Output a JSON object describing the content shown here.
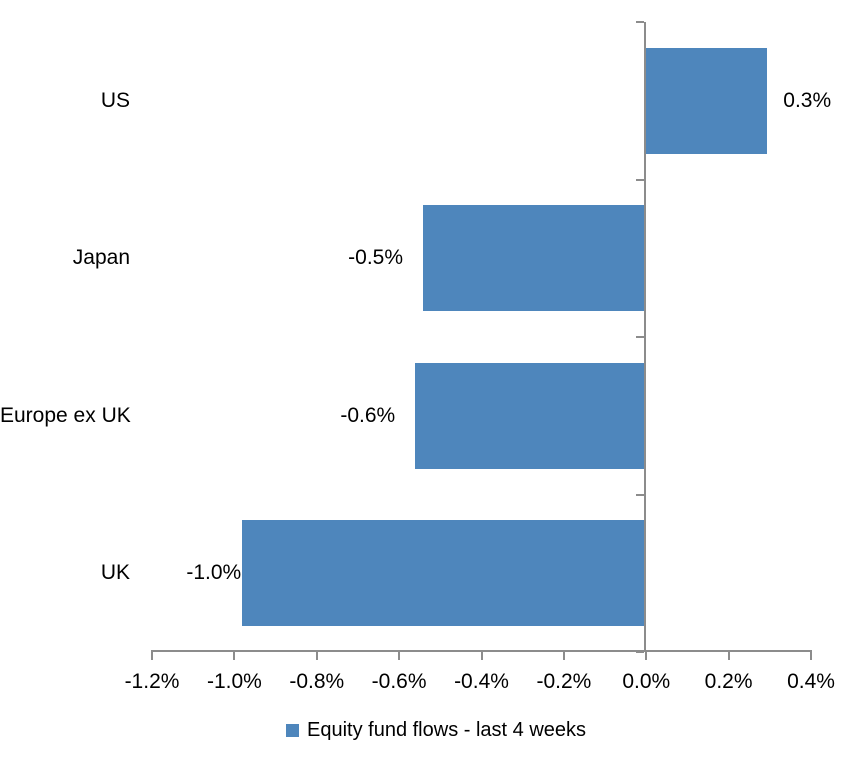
{
  "chart_data": {
    "type": "bar",
    "orientation": "horizontal",
    "title": "",
    "categories": [
      "US",
      "Japan",
      "Europe ex UK",
      "UK"
    ],
    "values": [
      0.3,
      -0.5,
      -0.6,
      -1.0
    ],
    "value_labels": [
      "0.3%",
      "-0.5%",
      "-0.6%",
      "-1.0%"
    ],
    "values_measured": [
      0.294,
      -0.542,
      -0.561,
      -0.981
    ],
    "series": [
      {
        "name": "Equity fund flows - last 4 weeks",
        "values": [
          0.3,
          -0.5,
          -0.6,
          -1.0
        ]
      }
    ],
    "x_ticks": [
      "-1.2%",
      "-1.0%",
      "-0.8%",
      "-0.6%",
      "-0.4%",
      "-0.2%",
      "0.0%",
      "0.2%",
      "0.4%"
    ],
    "x_tick_values": [
      -1.2,
      -1.0,
      -0.8,
      -0.6,
      -0.4,
      -0.2,
      0.0,
      0.2,
      0.4
    ],
    "xlim": [
      -1.2,
      0.4
    ],
    "xlabel": "",
    "ylabel": "",
    "grid": false,
    "legend_position": "bottom",
    "colors": {
      "bar": "#4E86BC",
      "axis": "#8C8C8C",
      "text": "#000000",
      "background": "#FFFFFF"
    }
  },
  "legend": {
    "label": "Equity fund flows - last 4 weeks"
  }
}
